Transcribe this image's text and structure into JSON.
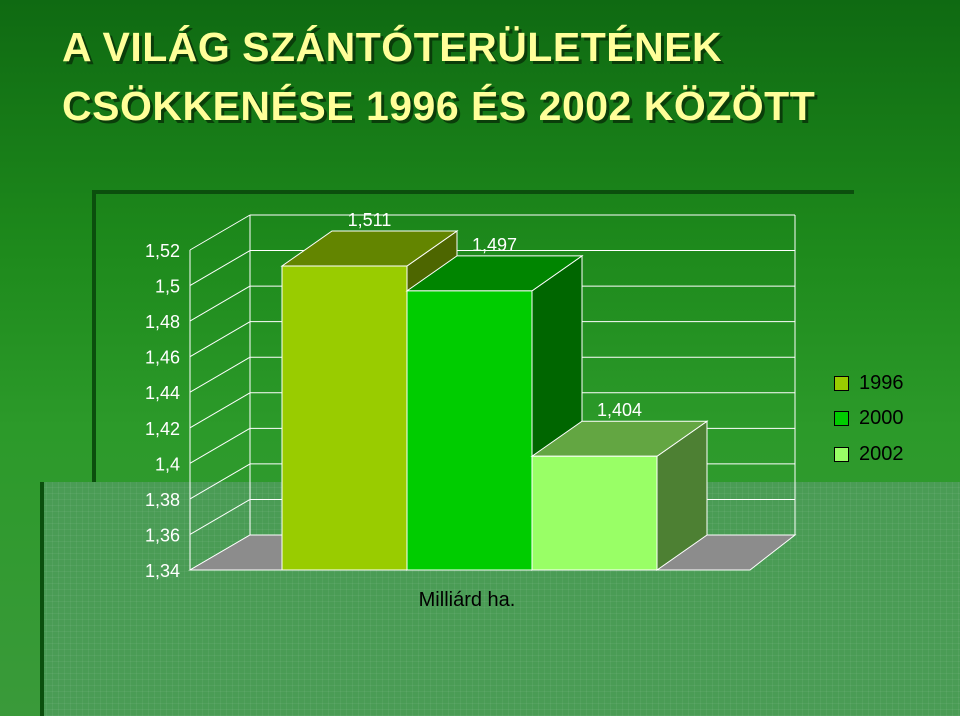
{
  "title": "A VILÁG SZÁNTÓTERÜLETÉNEK CSÖKKENÉSE 1996 ÉS 2002 KÖZÖTT",
  "chart_data": {
    "type": "bar",
    "title": "A VILÁG SZÁNTÓTERÜLETÉNEK CSÖKKENÉSE 1996 ÉS 2002 KÖZÖTT",
    "xlabel": "Milliárd ha.",
    "ylabel": "",
    "ylim": [
      1.34,
      1.52
    ],
    "y_ticks": [
      "1,52",
      "1,5",
      "1,48",
      "1,46",
      "1,44",
      "1,42",
      "1,4",
      "1,38",
      "1,36",
      "1,34"
    ],
    "y_tick_values": [
      1.52,
      1.5,
      1.48,
      1.46,
      1.44,
      1.42,
      1.4,
      1.38,
      1.36,
      1.34
    ],
    "series": [
      {
        "name": "1996",
        "values": [
          1.511
        ],
        "label": "1,511",
        "color": "#99cc00"
      },
      {
        "name": "2000",
        "values": [
          1.497
        ],
        "label": "1,497",
        "color": "#00cc00"
      },
      {
        "name": "2002",
        "values": [
          1.404
        ],
        "label": "1,404",
        "color": "#99ff66"
      }
    ],
    "grid": true,
    "legend_position": "right",
    "three_d": true
  },
  "legend": {
    "items": [
      {
        "label": "1996",
        "color": "#99cc00"
      },
      {
        "label": "2000",
        "color": "#00cc00"
      },
      {
        "label": "2002",
        "color": "#99ff66"
      }
    ]
  }
}
